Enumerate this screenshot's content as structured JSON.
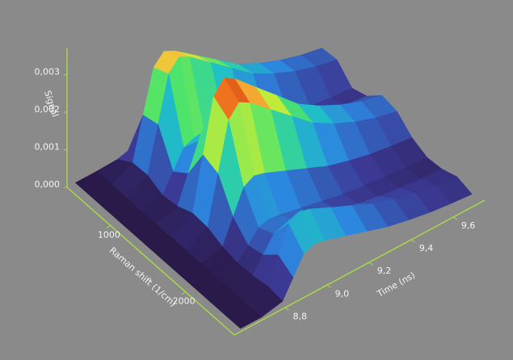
{
  "chart_data": {
    "type": "surface",
    "x_label": "Raman shift (1/cm)",
    "y_label": "Time (ns)",
    "z_label": "Signal",
    "xlim": [
      420,
      2650
    ],
    "ylim": [
      8.56,
      9.75
    ],
    "zlim": [
      0,
      0.0037
    ],
    "xticks": [
      1000,
      2000
    ],
    "yticks": [
      {
        "value": 8.8,
        "label": "8,8"
      },
      {
        "value": 9.0,
        "label": "9,0"
      },
      {
        "value": 9.2,
        "label": "9,2"
      },
      {
        "value": 9.4,
        "label": "9,4"
      },
      {
        "value": 9.6,
        "label": "9,6"
      }
    ],
    "zticks": [
      {
        "value": 0,
        "label": "0,000"
      },
      {
        "value": 0.001,
        "label": "0,001"
      },
      {
        "value": 0.002,
        "label": "0,002"
      },
      {
        "value": 0.003,
        "label": "0,003"
      }
    ],
    "axis_color": "#a8d84a",
    "raman": [
      420,
      620,
      820,
      1020,
      1220,
      1420,
      1620,
      1820,
      2020,
      2220,
      2420,
      2620
    ],
    "time": [
      8.6,
      8.7,
      8.8,
      8.85,
      8.9,
      8.95,
      9.0,
      9.1,
      9.2,
      9.3,
      9.4,
      9.5,
      9.6,
      9.7
    ],
    "signal": [
      [
        0,
        0,
        0,
        0,
        0,
        0,
        0,
        0,
        0,
        0,
        0,
        0
      ],
      [
        0,
        0,
        0,
        0,
        0,
        0,
        0,
        0,
        0,
        0,
        0,
        0
      ],
      [
        2e-05,
        0.00028,
        0.0003,
        0.00012,
        0.00018,
        0.00035,
        0.00032,
        0.00016,
        8e-05,
        0.0001,
        0.00017,
        0.00012
      ],
      [
        0.0001,
        0.0014,
        0.0015,
        0.0006,
        0.0009,
        0.00175,
        0.0016,
        0.0008,
        0.0004,
        0.0005,
        0.00085,
        0.0006
      ],
      [
        0.00018,
        0.00252,
        0.0027,
        0.00108,
        0.00162,
        0.00315,
        0.00288,
        0.00144,
        0.00072,
        0.0009,
        0.00153,
        0.00108
      ],
      [
        0.0002,
        0.0028,
        0.003,
        0.0012,
        0.0018,
        0.0035,
        0.0032,
        0.0016,
        0.0008,
        0.001,
        0.0017,
        0.0012
      ],
      [
        0.00019,
        0.00266,
        0.00285,
        0.00114,
        0.00171,
        0.00333,
        0.00304,
        0.00152,
        0.00076,
        0.00095,
        0.00162,
        0.00114
      ],
      [
        0.00016,
        0.00224,
        0.0024,
        0.00096,
        0.00144,
        0.0028,
        0.00256,
        0.00128,
        0.00064,
        0.0008,
        0.00136,
        0.00096
      ],
      [
        0.00013,
        0.00182,
        0.00195,
        0.00078,
        0.00117,
        0.00228,
        0.00208,
        0.00104,
        0.00052,
        0.00065,
        0.00111,
        0.00078
      ],
      [
        0.0001,
        0.0014,
        0.0015,
        0.0006,
        0.0009,
        0.00175,
        0.0016,
        0.0008,
        0.0004,
        0.0005,
        0.00085,
        0.0006
      ],
      [
        8e-05,
        0.00112,
        0.0012,
        0.00048,
        0.00072,
        0.0014,
        0.00128,
        0.00064,
        0.00032,
        0.0004,
        0.00068,
        0.00048
      ],
      [
        6e-05,
        0.0009,
        0.00096,
        0.00038,
        0.00058,
        0.00112,
        0.00102,
        0.00051,
        0.00026,
        0.00032,
        0.00054,
        0.00038
      ],
      [
        5e-05,
        0.00073,
        0.00078,
        0.00031,
        0.00047,
        0.00091,
        0.00083,
        0.00042,
        0.00021,
        0.00026,
        0.00044,
        0.00031
      ],
      [
        4e-05,
        0.00062,
        0.00066,
        0.00026,
        0.0004,
        0.00077,
        0.0007,
        0.00035,
        0.00018,
        0.00022,
        0.00037,
        0.00026
      ]
    ]
  }
}
